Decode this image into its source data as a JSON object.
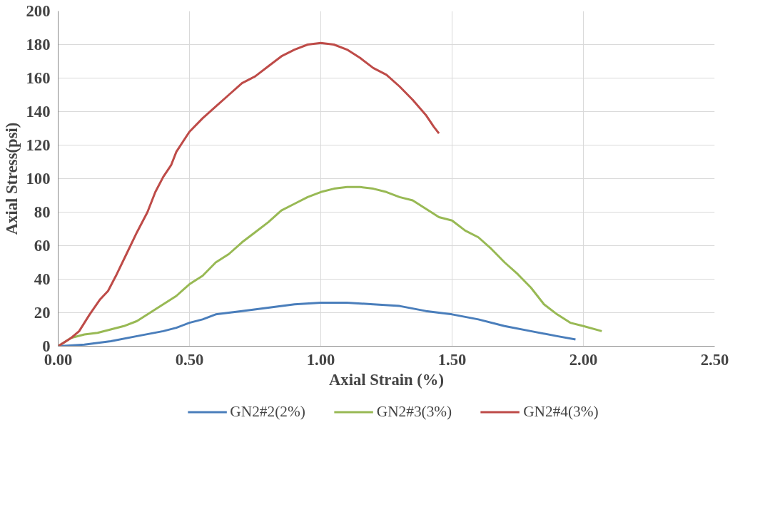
{
  "chart_data": {
    "type": "line",
    "xlabel": "Axial Strain (%)",
    "ylabel": "Axial Stress(psi)",
    "xlim": [
      0,
      2.5
    ],
    "ylim": [
      0,
      200
    ],
    "xticks": [
      {
        "value": 0,
        "label": "0.00"
      },
      {
        "value": 0.5,
        "label": "0.50"
      },
      {
        "value": 1,
        "label": "1.00"
      },
      {
        "value": 1.5,
        "label": "1.50"
      },
      {
        "value": 2,
        "label": "2.00"
      },
      {
        "value": 2.5,
        "label": "2.50"
      }
    ],
    "yticks": [
      0,
      20,
      40,
      60,
      80,
      100,
      120,
      140,
      160,
      180,
      200
    ],
    "grid": true,
    "legend": "bottom",
    "marker": "none",
    "line_style": "solid",
    "series": [
      {
        "name": "GN2#2(2%)",
        "color": "#4a7ebb",
        "x": [
          0,
          0.1,
          0.2,
          0.3,
          0.4,
          0.45,
          0.5,
          0.55,
          0.6,
          0.7,
          0.8,
          0.9,
          1.0,
          1.1,
          1.2,
          1.3,
          1.4,
          1.5,
          1.6,
          1.7,
          1.8,
          1.9,
          1.97
        ],
        "values": [
          0,
          1,
          3,
          6,
          9,
          11,
          14,
          16,
          19,
          21,
          23,
          25,
          26,
          26,
          25,
          24,
          21,
          19,
          16,
          12,
          9,
          6,
          4
        ]
      },
      {
        "name": "GN2#3(3%)",
        "color": "#98b954",
        "x": [
          0,
          0.05,
          0.1,
          0.15,
          0.2,
          0.25,
          0.3,
          0.35,
          0.4,
          0.45,
          0.5,
          0.55,
          0.6,
          0.65,
          0.7,
          0.75,
          0.8,
          0.85,
          0.9,
          0.95,
          1.0,
          1.05,
          1.1,
          1.15,
          1.2,
          1.25,
          1.3,
          1.35,
          1.4,
          1.45,
          1.5,
          1.55,
          1.6,
          1.65,
          1.7,
          1.75,
          1.8,
          1.85,
          1.9,
          1.95,
          2.0,
          2.07
        ],
        "values": [
          0,
          5,
          7,
          8,
          10,
          12,
          15,
          20,
          25,
          30,
          37,
          42,
          50,
          55,
          62,
          68,
          74,
          81,
          85,
          89,
          92,
          94,
          95,
          95,
          94,
          92,
          89,
          87,
          82,
          77,
          75,
          69,
          65,
          58,
          50,
          43,
          35,
          25,
          19,
          14,
          12,
          9
        ]
      },
      {
        "name": "GN2#4(3%)",
        "color": "#be4b48",
        "x": [
          0,
          0.05,
          0.08,
          0.12,
          0.16,
          0.19,
          0.22,
          0.26,
          0.3,
          0.34,
          0.37,
          0.4,
          0.43,
          0.45,
          0.5,
          0.55,
          0.6,
          0.65,
          0.7,
          0.75,
          0.8,
          0.85,
          0.9,
          0.95,
          1.0,
          1.05,
          1.1,
          1.15,
          1.2,
          1.25,
          1.3,
          1.35,
          1.4,
          1.43,
          1.45
        ],
        "values": [
          0,
          5,
          9,
          19,
          28,
          33,
          42,
          55,
          68,
          80,
          92,
          101,
          108,
          116,
          128,
          136,
          143,
          150,
          157,
          161,
          167,
          173,
          177,
          180,
          181,
          180,
          177,
          172,
          166,
          162,
          155,
          147,
          138,
          131,
          127
        ]
      }
    ]
  }
}
